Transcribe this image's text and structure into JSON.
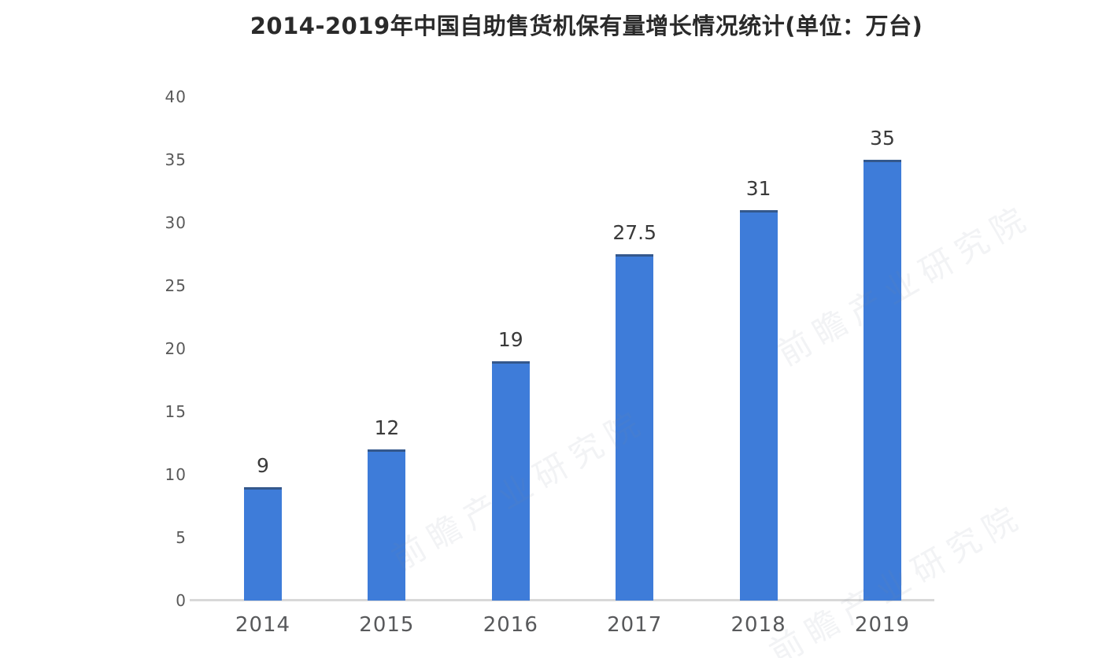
{
  "title": "2014-2019年中国自助售货机保有量增长情况统计(单位：万台)",
  "watermark": {
    "text": "前瞻产业研究院"
  },
  "chart_data": {
    "type": "bar",
    "title": "2014-2019年中国自助售货机保有量增长情况统计(单位：万台)",
    "unit": "万台",
    "categories": [
      "2014",
      "2015",
      "2016",
      "2017",
      "2018",
      "2019"
    ],
    "values": [
      9,
      12,
      19,
      27.5,
      31,
      35
    ],
    "data_labels": [
      "9",
      "12",
      "19",
      "27.5",
      "31",
      "35"
    ],
    "xlabel": "",
    "ylabel": "",
    "ylim": [
      0,
      40
    ],
    "yticks": [
      0,
      5,
      10,
      15,
      20,
      25,
      30,
      35,
      40
    ],
    "grid": false,
    "legend": "none",
    "colors": {
      "bar": "#3e7cd9",
      "bar_top_edge": "rgba(42, 52, 64, 0.5)",
      "axis_line": "#d8d8d8",
      "y_tick_label": "#595959",
      "x_tick_label": "#58595b",
      "data_label": "#3a3a3a",
      "title": "#2a2a2a"
    }
  }
}
